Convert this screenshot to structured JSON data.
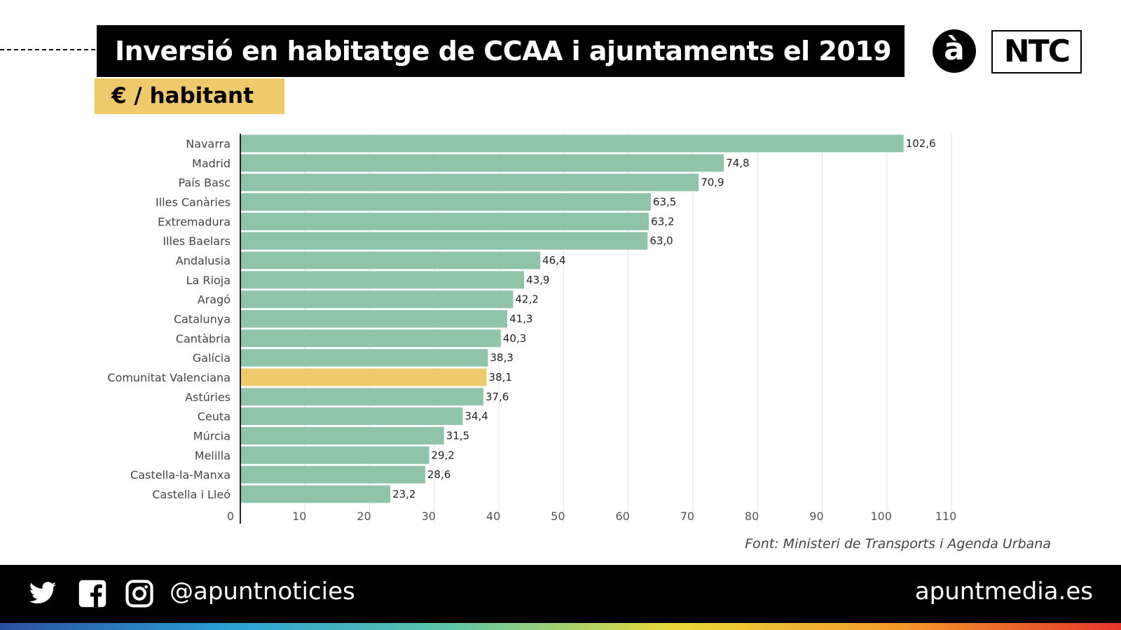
{
  "header": {
    "title": "Inversió en habitatge de CCAA i ajuntaments el 2019",
    "subtitle": "€ / habitant",
    "logo_a": "à",
    "logo_ntc": "NTC"
  },
  "chart_data": {
    "type": "bar",
    "orientation": "horizontal",
    "title": "Inversió en habitatge de CCAA i ajuntaments el 2019",
    "ylabel": "",
    "xlabel": "",
    "unit": "€ / habitant",
    "categories": [
      "Navarra",
      "Madrid",
      "País Basc",
      "Illes Canàries",
      "Extremadura",
      "Illes Baelars",
      "Andalusia",
      "La Rioja",
      "Aragó",
      "Catalunya",
      "Cantàbria",
      "Galícia",
      "Comunitat Valenciana",
      "Astúries",
      "Ceuta",
      "Múrcia",
      "Melilla",
      "Castella-la-Manxa",
      "Castella i Lleó"
    ],
    "values": [
      102.6,
      74.8,
      70.9,
      63.5,
      63.2,
      63.0,
      46.4,
      43.9,
      42.2,
      41.3,
      40.3,
      38.3,
      38.1,
      37.6,
      34.4,
      31.5,
      29.2,
      28.6,
      23.2
    ],
    "value_labels": [
      "102,6",
      "74,8",
      "70,9",
      "63,5",
      "63,2",
      "63,0",
      "46,4",
      "43,9",
      "42,2",
      "41,3",
      "40,3",
      "38,3",
      "38,1",
      "37,6",
      "34,4",
      "31,5",
      "29,2",
      "28,6",
      "23,2"
    ],
    "highlight": "Comunitat Valenciana",
    "xlim": [
      0,
      110
    ],
    "xticks": [
      "0",
      "10",
      "20",
      "30",
      "40",
      "50",
      "60",
      "70",
      "80",
      "90",
      "100",
      "110"
    ],
    "grid": true,
    "colors": {
      "bar": "#8fc4a8",
      "highlight": "#efca6a"
    }
  },
  "source": "Font: Ministeri de Transports i Agenda Urbana",
  "footer": {
    "handle": "@apuntnoticies",
    "site": "apuntmedia.es",
    "icons": [
      "twitter-icon",
      "facebook-icon",
      "instagram-icon"
    ]
  }
}
